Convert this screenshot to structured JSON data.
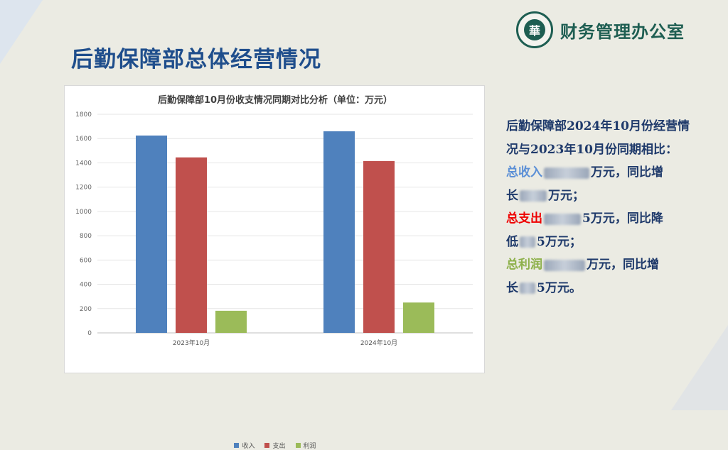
{
  "header": {
    "logo_icon": "university-seal-icon",
    "org_name": "财务管理办公室",
    "page_title": "后勤保障部总体经营情况"
  },
  "colors": {
    "title": "#1f4e8c",
    "org": "#1e5e52",
    "income": "#4f81bd",
    "expense": "#c0504d",
    "profit": "#9bbb59"
  },
  "chart_data": {
    "type": "bar",
    "title": "后勤保障部10月份收支情况同期对比分析（单位：万元）",
    "categories": [
      "2023年10月",
      "2024年10月"
    ],
    "series": [
      {
        "name": "收入",
        "color": "#4f81bd",
        "values": [
          1625,
          1660
        ]
      },
      {
        "name": "支出",
        "color": "#c0504d",
        "values": [
          1445,
          1415
        ]
      },
      {
        "name": "利润",
        "color": "#9bbb59",
        "values": [
          182,
          250
        ]
      }
    ],
    "ylim": [
      0,
      1800
    ],
    "yticks": [
      0,
      200,
      400,
      600,
      800,
      1000,
      1200,
      1400,
      1600,
      1800
    ],
    "grid": true,
    "legend": "bottom"
  },
  "summary": {
    "intro": "后勤保障部2024年10月份经营情况与2023年10月份同期相比：",
    "income_key": "总收入",
    "income_mid": "万元，同比增",
    "income_tail_a": "长",
    "income_tail_b": "万元；",
    "expense_key": "总支出",
    "expense_mid_digit": "5",
    "expense_mid": "万元，同比降",
    "expense_tail_a": "低",
    "expense_tail_digit": "5",
    "expense_tail_b": "万元；",
    "profit_key": "总利润",
    "profit_mid": "万元，同比增",
    "profit_tail_a": "长",
    "profit_tail_digit": "5",
    "profit_tail_b": "万元。"
  }
}
